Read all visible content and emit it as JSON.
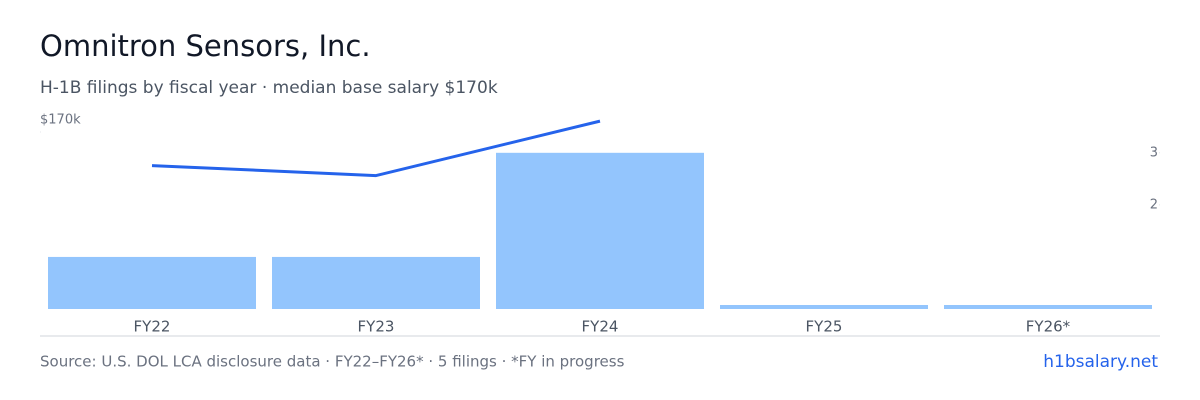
{
  "chart_data": {
    "type": "bar-line",
    "title": "Omnitron Sensors, Inc.",
    "subtitle": "H-1B filings by fiscal year · median base salary $170k",
    "categories": [
      "FY22",
      "FY23",
      "FY24",
      "FY25",
      "FY26*"
    ],
    "series": [
      {
        "name": "filings",
        "kind": "bar",
        "axis": "y2",
        "color": "#93c5fd",
        "values": [
          1,
          1,
          3,
          0,
          0
        ]
      },
      {
        "name": "median base salary",
        "kind": "line",
        "color": "#2563eb",
        "values": [
          129000,
          120000,
          169000,
          null,
          null
        ]
      }
    ],
    "ylim": [
      0,
      170000
    ],
    "yticks": [
      {
        "value": 170000,
        "label": "$170k"
      }
    ],
    "y2lim": [
      0,
      3.63
    ],
    "y2ticks": [
      2,
      3
    ],
    "footer": {
      "source": "Source: U.S. DOL LCA disclosure data · FY22–FY26* · 5 filings · *FY in progress",
      "link": "h1bsalary.net"
    }
  }
}
